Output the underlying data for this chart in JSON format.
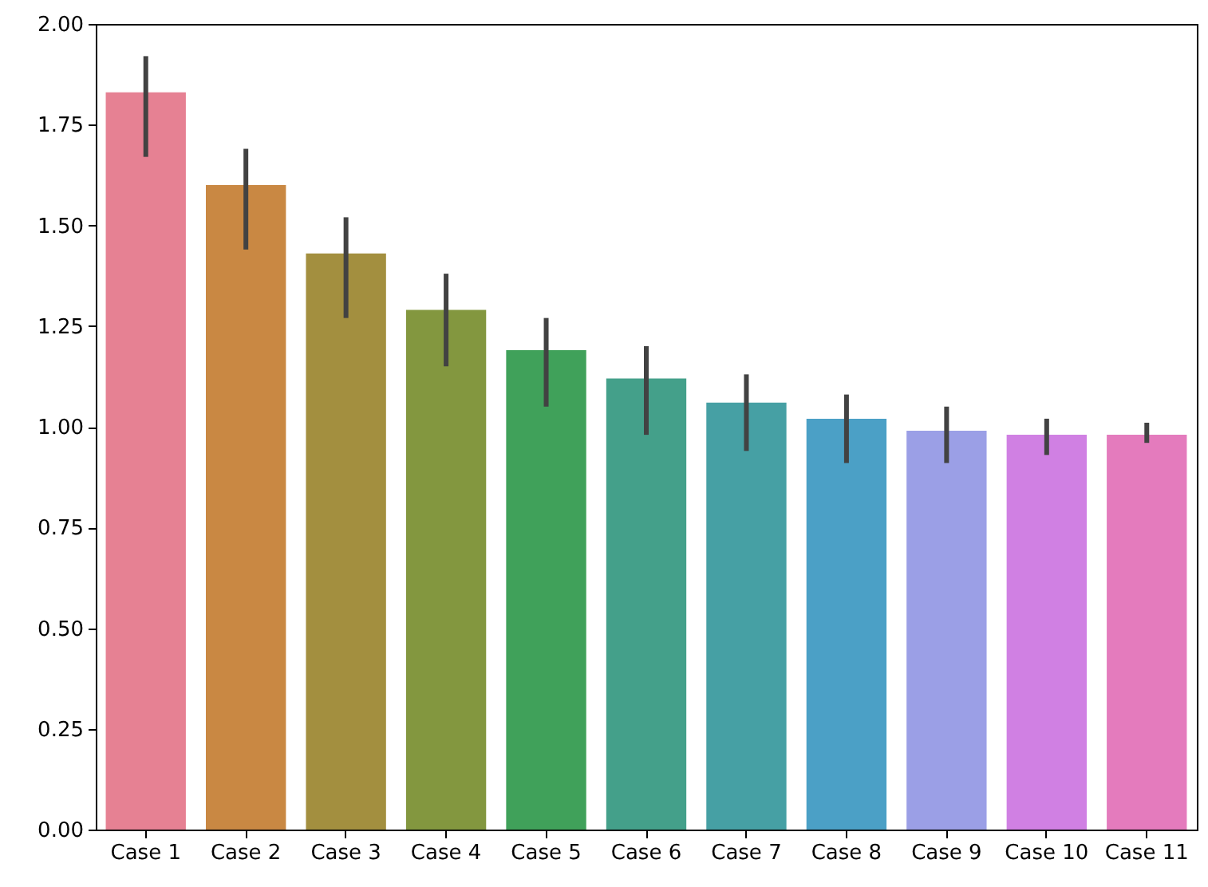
{
  "chart_data": {
    "type": "bar",
    "categories": [
      "Case 1",
      "Case 2",
      "Case 3",
      "Case 4",
      "Case 5",
      "Case 6",
      "Case 7",
      "Case 8",
      "Case 9",
      "Case 10",
      "Case 11"
    ],
    "values": [
      1.83,
      1.6,
      1.43,
      1.29,
      1.19,
      1.12,
      1.06,
      1.02,
      0.99,
      0.98,
      0.98
    ],
    "colors": [
      "#e68193",
      "#c98843",
      "#a38f3f",
      "#83973f",
      "#40a15a",
      "#44a08a",
      "#46a0a4",
      "#4ba0c6",
      "#9b9fe6",
      "#d080e3",
      "#e47bbd"
    ],
    "errors": [
      [
        1.67,
        1.92
      ],
      [
        1.44,
        1.69
      ],
      [
        1.27,
        1.52
      ],
      [
        1.15,
        1.38
      ],
      [
        1.05,
        1.27
      ],
      [
        0.98,
        1.2
      ],
      [
        0.94,
        1.13
      ],
      [
        0.91,
        1.08
      ],
      [
        0.91,
        1.05
      ],
      [
        0.93,
        1.02
      ],
      [
        0.96,
        1.01
      ]
    ],
    "ylim": [
      0,
      2.0
    ],
    "yticks": [
      {
        "value": 0,
        "label": "0.00"
      },
      {
        "value": 0.25,
        "label": "0.25"
      },
      {
        "value": 0.5,
        "label": "0.50"
      },
      {
        "value": 0.75,
        "label": "0.75"
      },
      {
        "value": 1.0,
        "label": "1.00"
      },
      {
        "value": 1.25,
        "label": "1.25"
      },
      {
        "value": 1.5,
        "label": "1.50"
      },
      {
        "value": 1.75,
        "label": "1.75"
      },
      {
        "value": 2.0,
        "label": "2.00"
      }
    ],
    "grid": false
  }
}
